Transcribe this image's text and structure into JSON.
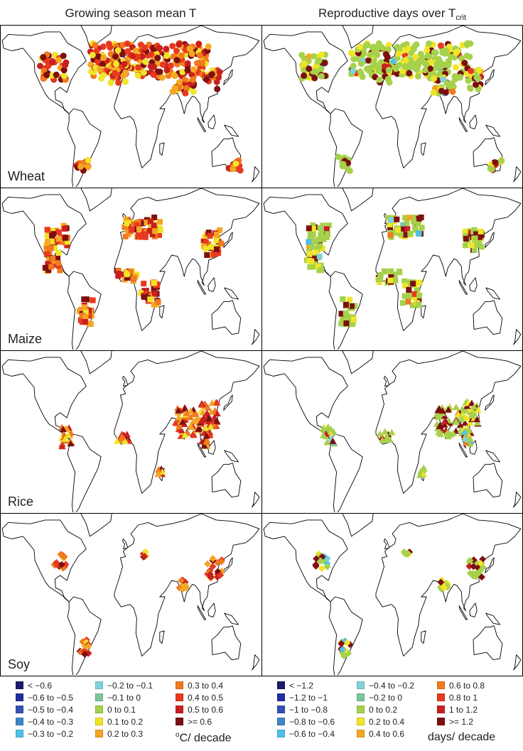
{
  "columns": [
    {
      "title": "Growing season mean T",
      "sub": ""
    },
    {
      "title": "Reproductive days over T",
      "sub": "crit"
    }
  ],
  "crops": [
    "Wheat",
    "Maize",
    "Rice",
    "Soy"
  ],
  "colors": [
    "#1a1a6e",
    "#1f2f9c",
    "#3550b5",
    "#3e86c8",
    "#4fc0e8",
    "#7fd3d8",
    "#7dc59a",
    "#a6d14a",
    "#f0e528",
    "#f5a623",
    "#f07a1e",
    "#e8391f",
    "#c8201e",
    "#7d0f10"
  ],
  "legend_left": {
    "labels": [
      "< −0.6",
      "−0.6 to −0.5",
      "−0.5 to −0.4",
      "−0.4 to −0.3",
      "−0.3 to −0.2",
      "−0.2 to −0.1",
      "−0.1 to 0",
      "0 to 0.1",
      "0.1 to 0.2",
      "0.2 to 0.3",
      "0.3 to 0.4",
      "0.4 to 0.5",
      "0.5 to 0.6",
      ">= 0.6"
    ],
    "unit_sup": "o",
    "unit": "C/ decade"
  },
  "legend_right": {
    "labels": [
      "< −1.2",
      "−1.2 to −1",
      "−1 to −0.8",
      "−0.8 to −0.6",
      "−0.6 to −0.4",
      "−0.4 to −0.2",
      "−0.2 to 0",
      "0 to 0.2",
      "0.2 to 0.4",
      "0.4 to 0.6",
      "0.6 to 0.8",
      "0.8 to 1",
      "1 to 1.2",
      ">= 1.2"
    ],
    "unit": "days/ decade"
  },
  "markers": {
    "Wheat": "circle",
    "Maize": "square",
    "Rice": "triangle",
    "Soy": "diamond"
  }
}
